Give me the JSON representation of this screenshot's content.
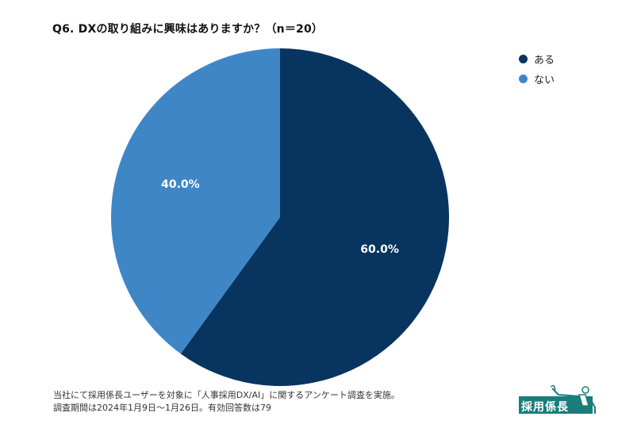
{
  "title": "Q6. DXの取り組みに興味はありますか？（n＝20）",
  "chart_data": {
    "type": "pie",
    "title": "Q6. DXの取り組みに興味はありますか？（n＝20）",
    "categories": [
      "ある",
      "ない"
    ],
    "values": [
      60.0,
      40.0
    ],
    "labels": [
      "60.0%",
      "40.0%"
    ],
    "colors": [
      "#08355f",
      "#3f86c7"
    ],
    "legend_position": "top-right",
    "start_angle": "12 o'clock, clockwise"
  },
  "legend": {
    "items": [
      {
        "label": "ある",
        "color": "#08355f"
      },
      {
        "label": "ない",
        "color": "#3f86c7"
      }
    ]
  },
  "note": {
    "line1": "当社にて採用係長ユーザーを対象に「人事採用DX/AI」に関するアンケート調査を実施。",
    "line2": "調査期間は2024年1月9日〜1月26日。有効回答数は79"
  },
  "logo": {
    "text": "採用係長",
    "color": "#1a7d7b"
  }
}
